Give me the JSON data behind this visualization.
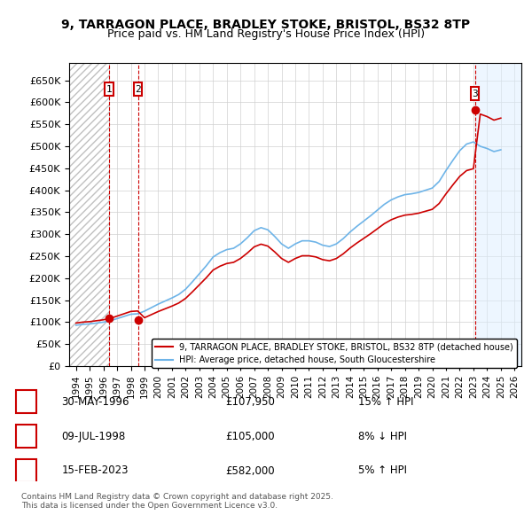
{
  "title": "9, TARRAGON PLACE, BRADLEY STOKE, BRISTOL, BS32 8TP",
  "subtitle": "Price paid vs. HM Land Registry's House Price Index (HPI)",
  "legend_line1": "9, TARRAGON PLACE, BRADLEY STOKE, BRISTOL, BS32 8TP (detached house)",
  "legend_line2": "HPI: Average price, detached house, South Gloucestershire",
  "footer": "Contains HM Land Registry data © Crown copyright and database right 2025.\nThis data is licensed under the Open Government Licence v3.0.",
  "sales": [
    {
      "num": 1,
      "date": "30-MAY-1996",
      "price": 107950,
      "pct": "15%",
      "dir": "↑"
    },
    {
      "num": 2,
      "date": "09-JUL-1998",
      "price": 105000,
      "pct": "8%",
      "dir": "↓"
    },
    {
      "num": 3,
      "date": "15-FEB-2023",
      "price": 582000,
      "pct": "5%",
      "dir": "↑"
    }
  ],
  "sale_dates_decimal": [
    1996.41,
    1998.52,
    2023.12
  ],
  "sale_prices": [
    107950,
    105000,
    582000
  ],
  "hpi_color": "#6eb4e8",
  "price_color": "#cc0000",
  "hatch_color": "#d0d0d0",
  "marker_box_color": "#cc0000",
  "ylim": [
    0,
    690000
  ],
  "yticks": [
    0,
    50000,
    100000,
    150000,
    200000,
    250000,
    300000,
    350000,
    400000,
    450000,
    500000,
    550000,
    600000,
    650000
  ],
  "xlim_start": 1993.5,
  "xlim_end": 2026.5,
  "xticks": [
    1994,
    1995,
    1996,
    1997,
    1998,
    1999,
    2000,
    2001,
    2002,
    2003,
    2004,
    2005,
    2006,
    2007,
    2008,
    2009,
    2010,
    2011,
    2012,
    2013,
    2014,
    2015,
    2016,
    2017,
    2018,
    2019,
    2020,
    2021,
    2022,
    2023,
    2024,
    2025,
    2026
  ]
}
